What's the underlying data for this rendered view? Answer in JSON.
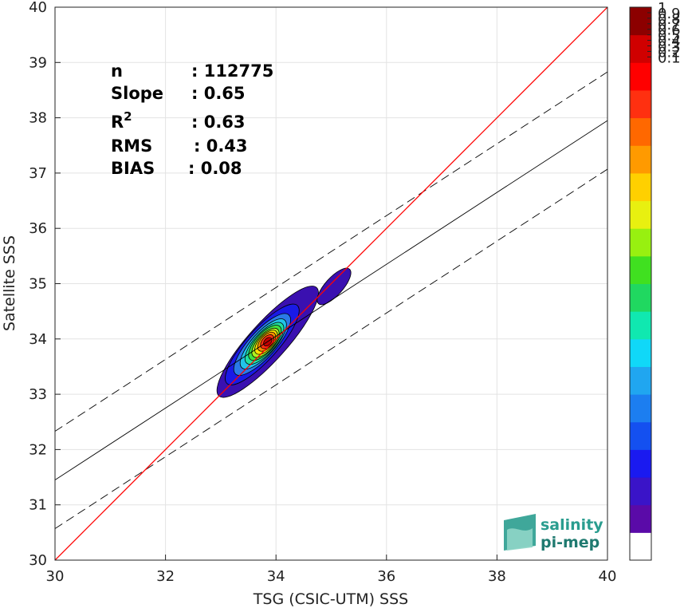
{
  "chart_data": {
    "type": "scatter",
    "subtype": "density-contour",
    "xlabel": "TSG (CSIC-UTM) SSS",
    "ylabel": "Satellite SSS",
    "xlim": [
      30,
      40
    ],
    "ylim": [
      30,
      40
    ],
    "xticks": [
      "30",
      "32",
      "34",
      "36",
      "38",
      "40"
    ],
    "yticks": [
      "30",
      "31",
      "32",
      "33",
      "34",
      "35",
      "36",
      "37",
      "38",
      "39",
      "40"
    ],
    "grid": true,
    "stats": [
      {
        "label": "n",
        "value": ": 112775"
      },
      {
        "label": "Slope",
        "value": ": 0.65"
      },
      {
        "label": "R",
        "sup": "2",
        "value": ": 0.63"
      },
      {
        "label": "RMS",
        "value": ": 0.43"
      },
      {
        "label": "BIAS",
        "value": ": 0.08"
      }
    ],
    "lines": {
      "identity": {
        "x": [
          30,
          40
        ],
        "y": [
          30,
          40
        ],
        "color": "#ff0000"
      },
      "fit": {
        "x": [
          30,
          40
        ],
        "y": [
          31.45,
          37.95
        ],
        "color": "#000000"
      },
      "fit_upper": {
        "x": [
          30,
          40
        ],
        "y": [
          32.33,
          38.83
        ],
        "color": "#000000",
        "dash": true
      },
      "fit_lower": {
        "x": [
          30,
          40
        ],
        "y": [
          30.57,
          37.07
        ],
        "color": "#000000",
        "dash": true
      }
    },
    "density": {
      "center": [
        33.85,
        33.95
      ],
      "rotation_deg": 48,
      "levels": [
        {
          "level": 0.05,
          "rx": 1.32,
          "ry": 0.34,
          "dx": 0.0,
          "dy": 0.0,
          "color": "#3a10b0"
        },
        {
          "level": 0.1,
          "rx": 0.95,
          "ry": 0.28,
          "dx": -0.1,
          "dy": -0.05,
          "color": "#1a1ae6"
        },
        {
          "level": 0.2,
          "rx": 0.72,
          "ry": 0.24,
          "dx": -0.1,
          "dy": -0.05,
          "color": "#2a7ae8"
        },
        {
          "level": 0.3,
          "rx": 0.58,
          "ry": 0.21,
          "dx": -0.08,
          "dy": -0.04,
          "color": "#22c3e8"
        },
        {
          "level": 0.4,
          "rx": 0.48,
          "ry": 0.19,
          "dx": -0.06,
          "dy": -0.03,
          "color": "#20e0a0"
        },
        {
          "level": 0.5,
          "rx": 0.4,
          "ry": 0.17,
          "dx": -0.05,
          "dy": -0.02,
          "color": "#40e040"
        },
        {
          "level": 0.6,
          "rx": 0.33,
          "ry": 0.15,
          "dx": -0.04,
          "dy": -0.02,
          "color": "#b0f020"
        },
        {
          "level": 0.7,
          "rx": 0.27,
          "ry": 0.13,
          "dx": -0.03,
          "dy": -0.01,
          "color": "#ffe000"
        },
        {
          "level": 0.8,
          "rx": 0.21,
          "ry": 0.11,
          "dx": -0.02,
          "dy": 0.0,
          "color": "#ff9000"
        },
        {
          "level": 0.9,
          "rx": 0.15,
          "ry": 0.09,
          "dx": -0.01,
          "dy": 0.0,
          "color": "#ff3010"
        },
        {
          "level": 1.0,
          "rx": 0.09,
          "ry": 0.06,
          "dx": 0.0,
          "dy": 0.0,
          "color": "#c00000"
        }
      ],
      "secondary_blob": {
        "center": [
          35.05,
          34.95
        ],
        "rx": 0.42,
        "ry": 0.16,
        "rotation_deg": 48,
        "color": "#3a10b0"
      }
    },
    "colorbar": {
      "ticks": [
        "0.1",
        "0.2",
        "0.3",
        "0.4",
        "0.5",
        "0.6",
        "0.7",
        "0.8",
        "0.9",
        "1"
      ],
      "colors": [
        "#ffffff",
        "#5a0aa8",
        "#3a14c8",
        "#1a1af0",
        "#1450f0",
        "#1c7ef0",
        "#20a6f0",
        "#10d8f8",
        "#10e8b0",
        "#20d860",
        "#40e020",
        "#98f010",
        "#e8f010",
        "#ffd000",
        "#ff9a00",
        "#ff6800",
        "#ff3010",
        "#ff0000",
        "#d00000",
        "#8c0000"
      ]
    }
  },
  "logo": {
    "line1": "salinity",
    "line2": "pi-mep"
  }
}
